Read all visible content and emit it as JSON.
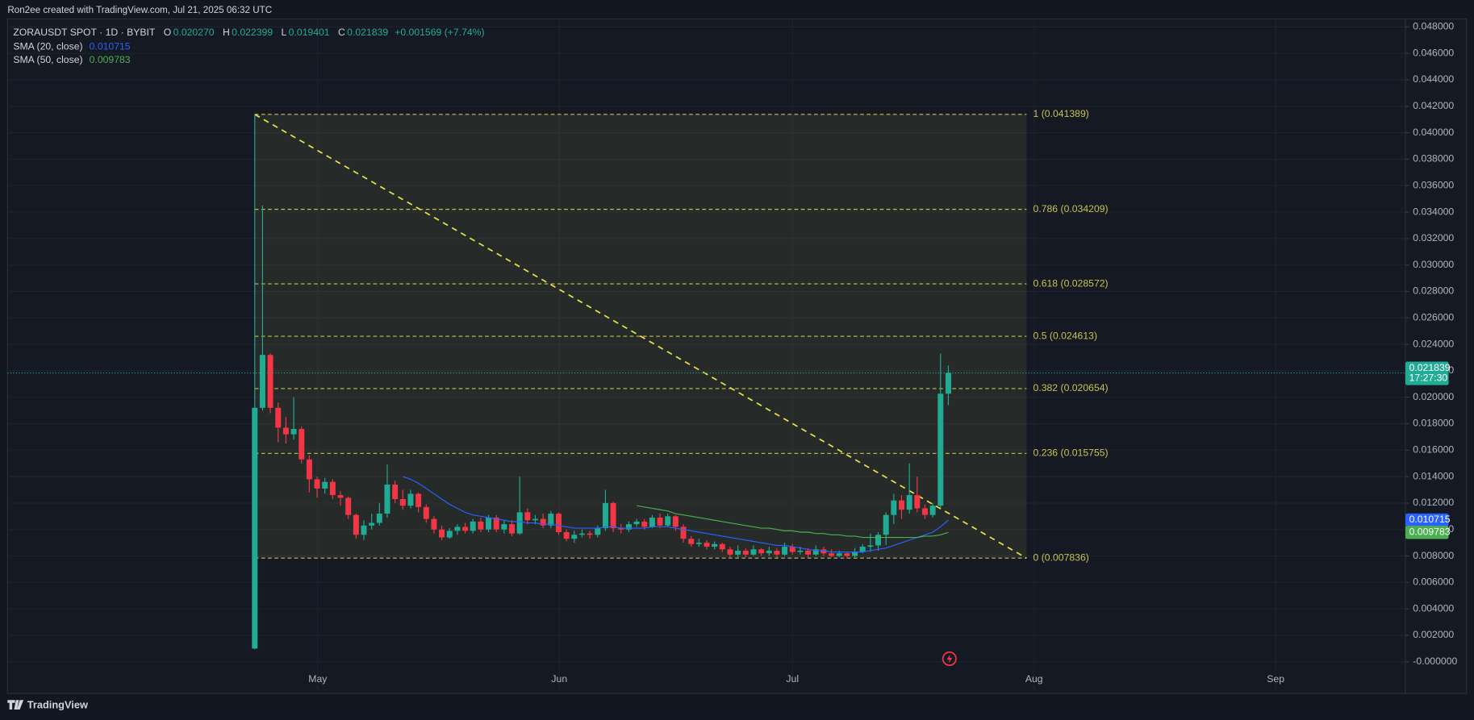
{
  "header": {
    "credit": "Ron2ee created with TradingView.com, Jul 21, 2025 06:32 UTC",
    "brand": "TradingView"
  },
  "chart_data": {
    "type": "candlestick",
    "symbol": "ZORAUSDT SPOT · 1D · BYBIT",
    "ohlc_legend": [
      {
        "key": "O",
        "value": "0.020270"
      },
      {
        "key": "H",
        "value": "0.022399"
      },
      {
        "key": "L",
        "value": "0.019401"
      },
      {
        "key": "C",
        "value": "0.021839"
      }
    ],
    "change": "+0.001569 (+7.74%)",
    "open": [
      0.001,
      0.0192,
      0.0232,
      0.0192,
      0.0177,
      0.0172,
      0.0176,
      0.0153,
      0.0138,
      0.0131,
      0.0136,
      0.0126,
      0.0124,
      0.0111,
      0.0096,
      0.0103,
      0.0105,
      0.0112,
      0.0134,
      0.0123,
      0.0118,
      0.0127,
      0.0117,
      0.0108,
      0.01,
      0.0094,
      0.0099,
      0.0102,
      0.0099,
      0.0106,
      0.01,
      0.0109,
      0.01,
      0.0104,
      0.0097,
      0.0113,
      0.0107,
      0.0108,
      0.0103,
      0.0112,
      0.0098,
      0.0093,
      0.0096,
      0.0097,
      0.0096,
      0.0101,
      0.012,
      0.0101,
      0.01,
      0.0104,
      0.0106,
      0.0102,
      0.0109,
      0.0103,
      0.011,
      0.0102,
      0.0093,
      0.0089,
      0.009,
      0.0087,
      0.0089,
      0.0085,
      0.0081,
      0.0084,
      0.0081,
      0.0085,
      0.0082,
      0.0084,
      0.0081,
      0.0087,
      0.0083,
      0.0084,
      0.0081,
      0.0085,
      0.0082,
      0.008,
      0.0082,
      0.008,
      0.0083,
      0.0087,
      0.0088,
      0.0096,
      0.0111,
      0.0122,
      0.0115,
      0.0126,
      0.0116,
      0.0111,
      0.0118,
      0.02027
    ],
    "high": [
      0.041389,
      0.0345,
      0.0233,
      0.0196,
      0.0185,
      0.02,
      0.0178,
      0.0156,
      0.014,
      0.0139,
      0.0138,
      0.0129,
      0.0125,
      0.0112,
      0.0107,
      0.0112,
      0.012,
      0.0149,
      0.0137,
      0.013,
      0.013,
      0.0128,
      0.0119,
      0.011,
      0.0103,
      0.0101,
      0.0104,
      0.0105,
      0.0108,
      0.0109,
      0.0111,
      0.0111,
      0.0107,
      0.0107,
      0.014,
      0.0116,
      0.0111,
      0.0112,
      0.0114,
      0.0113,
      0.01,
      0.0099,
      0.01,
      0.0099,
      0.0103,
      0.013,
      0.0121,
      0.0104,
      0.0106,
      0.0108,
      0.0108,
      0.0111,
      0.0112,
      0.0112,
      0.0111,
      0.0104,
      0.0095,
      0.0093,
      0.0092,
      0.0091,
      0.009,
      0.0087,
      0.0088,
      0.0086,
      0.0088,
      0.0086,
      0.0087,
      0.0086,
      0.009,
      0.0089,
      0.0087,
      0.0086,
      0.0088,
      0.0087,
      0.0085,
      0.0084,
      0.0083,
      0.0086,
      0.0089,
      0.0097,
      0.0098,
      0.0113,
      0.0127,
      0.0126,
      0.015,
      0.014,
      0.0119,
      0.012,
      0.0233,
      0.022399
    ],
    "low": [
      0.00094,
      0.019,
      0.0188,
      0.0166,
      0.0165,
      0.0168,
      0.015,
      0.0128,
      0.0124,
      0.0127,
      0.0123,
      0.0118,
      0.0108,
      0.0093,
      0.0092,
      0.01,
      0.0103,
      0.0109,
      0.012,
      0.0115,
      0.0116,
      0.0113,
      0.0105,
      0.0097,
      0.0092,
      0.0093,
      0.0096,
      0.0097,
      0.0097,
      0.0098,
      0.0098,
      0.0098,
      0.0097,
      0.0095,
      0.0096,
      0.0104,
      0.0104,
      0.0101,
      0.0101,
      0.0096,
      0.0091,
      0.009,
      0.0094,
      0.0093,
      0.0094,
      0.0099,
      0.0098,
      0.0097,
      0.0098,
      0.0102,
      0.01,
      0.0101,
      0.0101,
      0.0102,
      0.0099,
      0.009,
      0.0087,
      0.0087,
      0.0085,
      0.0085,
      0.0083,
      0.0079,
      0.0079,
      0.0079,
      0.008,
      0.008,
      0.008,
      0.0079,
      0.008,
      0.0081,
      0.0081,
      0.0079,
      0.008,
      0.008,
      0.0079,
      0.0079,
      0.0078,
      0.0079,
      0.0082,
      0.0083,
      0.0084,
      0.0088,
      0.0104,
      0.0108,
      0.0112,
      0.0113,
      0.0108,
      0.0109,
      0.0116,
      0.019401
    ],
    "close": [
      0.0192,
      0.0232,
      0.0192,
      0.0177,
      0.0172,
      0.0176,
      0.0153,
      0.0138,
      0.0131,
      0.0136,
      0.0126,
      0.0124,
      0.0111,
      0.0096,
      0.0103,
      0.0105,
      0.0112,
      0.0134,
      0.0123,
      0.0118,
      0.0127,
      0.0117,
      0.0108,
      0.01,
      0.0094,
      0.0099,
      0.0102,
      0.0099,
      0.0106,
      0.01,
      0.0109,
      0.01,
      0.0104,
      0.0097,
      0.0113,
      0.0107,
      0.0108,
      0.0103,
      0.0112,
      0.0098,
      0.0093,
      0.0096,
      0.0097,
      0.0096,
      0.0101,
      0.012,
      0.0101,
      0.01,
      0.0104,
      0.0106,
      0.0102,
      0.0109,
      0.0103,
      0.011,
      0.0102,
      0.0093,
      0.0089,
      0.009,
      0.0087,
      0.0089,
      0.0085,
      0.0081,
      0.0084,
      0.0081,
      0.0085,
      0.0082,
      0.0084,
      0.0081,
      0.0087,
      0.0083,
      0.0084,
      0.0081,
      0.0085,
      0.0082,
      0.008,
      0.0082,
      0.008,
      0.0083,
      0.0087,
      0.0088,
      0.0096,
      0.0111,
      0.0122,
      0.0115,
      0.0126,
      0.0116,
      0.0111,
      0.0118,
      0.02027,
      0.021839
    ],
    "up_color": "#22ab94",
    "down_color": "#f23645",
    "series": [
      {
        "name": "SMA (20, close)",
        "color": "#2962ff",
        "values": [
          null,
          null,
          null,
          null,
          null,
          null,
          null,
          null,
          null,
          null,
          null,
          null,
          null,
          null,
          null,
          null,
          null,
          null,
          null,
          0.014,
          0.0138,
          0.0135,
          0.0131,
          0.0127,
          0.0123,
          0.0119,
          0.0116,
          0.0113,
          0.0111,
          0.011,
          0.0109,
          0.0108,
          0.0107,
          0.0106,
          0.0106,
          0.0105,
          0.0105,
          0.0104,
          0.0104,
          0.0103,
          0.0102,
          0.0101,
          0.0101,
          0.0101,
          0.0101,
          0.0102,
          0.0102,
          0.0101,
          0.0101,
          0.0101,
          0.0101,
          0.0102,
          0.0102,
          0.0102,
          0.0101,
          0.01,
          0.0099,
          0.0098,
          0.0097,
          0.0096,
          0.0095,
          0.0094,
          0.0093,
          0.0092,
          0.0091,
          0.009,
          0.0089,
          0.0088,
          0.0088,
          0.0087,
          0.0086,
          0.0085,
          0.0084,
          0.0084,
          0.0083,
          0.0083,
          0.0083,
          0.0083,
          0.0083,
          0.0084,
          0.0085,
          0.0086,
          0.0088,
          0.009,
          0.0092,
          0.0094,
          0.0096,
          0.0098,
          0.0102,
          0.010715
        ]
      },
      {
        "name": "SMA (50, close)",
        "color": "#4caf50",
        "values": [
          null,
          null,
          null,
          null,
          null,
          null,
          null,
          null,
          null,
          null,
          null,
          null,
          null,
          null,
          null,
          null,
          null,
          null,
          null,
          null,
          null,
          null,
          null,
          null,
          null,
          null,
          null,
          null,
          null,
          null,
          null,
          null,
          null,
          null,
          null,
          null,
          null,
          null,
          null,
          null,
          null,
          null,
          null,
          null,
          null,
          null,
          null,
          null,
          null,
          0.0118,
          0.0117,
          0.0116,
          0.0115,
          0.0114,
          0.0112,
          0.0111,
          0.011,
          0.0109,
          0.0108,
          0.0107,
          0.0106,
          0.0105,
          0.0104,
          0.0103,
          0.0102,
          0.0101,
          0.0101,
          0.01,
          0.0099,
          0.0099,
          0.0098,
          0.0098,
          0.0097,
          0.0097,
          0.0096,
          0.0096,
          0.0095,
          0.0095,
          0.0094,
          0.0094,
          0.0094,
          0.0094,
          0.0094,
          0.0094,
          0.0094,
          0.0094,
          0.0095,
          0.0095,
          0.0096,
          0.009783
        ]
      }
    ],
    "x_labels": [
      "May",
      "Jun",
      "Jul",
      "Aug",
      "Sep"
    ],
    "ylim": [
      -0.0024,
      0.0486
    ],
    "yticks": [
      {
        "value": 0.048,
        "label": "0.048000"
      },
      {
        "value": 0.046,
        "label": "0.046000"
      },
      {
        "value": 0.044,
        "label": "0.044000"
      },
      {
        "value": 0.042,
        "label": "0.042000"
      },
      {
        "value": 0.04,
        "label": "0.040000"
      },
      {
        "value": 0.038,
        "label": "0.038000"
      },
      {
        "value": 0.036,
        "label": "0.036000"
      },
      {
        "value": 0.034,
        "label": "0.034000"
      },
      {
        "value": 0.032,
        "label": "0.032000"
      },
      {
        "value": 0.03,
        "label": "0.030000"
      },
      {
        "value": 0.028,
        "label": "0.028000"
      },
      {
        "value": 0.026,
        "label": "0.026000"
      },
      {
        "value": 0.024,
        "label": "0.024000"
      },
      {
        "value": 0.022,
        "label": "0.022000"
      },
      {
        "value": 0.02,
        "label": "0.020000"
      },
      {
        "value": 0.018,
        "label": "0.018000"
      },
      {
        "value": 0.016,
        "label": "0.016000"
      },
      {
        "value": 0.014,
        "label": "0.014000"
      },
      {
        "value": 0.012,
        "label": "0.012000"
      },
      {
        "value": 0.01,
        "label": "0.010000"
      },
      {
        "value": 0.008,
        "label": "0.008000"
      },
      {
        "value": 0.006,
        "label": "0.006000"
      },
      {
        "value": 0.004,
        "label": "0.004000"
      },
      {
        "value": 0.002,
        "label": "0.002000"
      },
      {
        "value": 0,
        "label": "-0.000000"
      }
    ],
    "grid": true,
    "fib_levels": [
      {
        "value": 0.041389,
        "label": "1 (0.041389)"
      },
      {
        "value": 0.034209,
        "label": "0.786 (0.034209)"
      },
      {
        "value": 0.028572,
        "label": "0.618 (0.028572)"
      },
      {
        "value": 0.024613,
        "label": "0.5 (0.024613)"
      },
      {
        "value": 0.020654,
        "label": "0.382 (0.020654)"
      },
      {
        "value": 0.015755,
        "label": "0.236 (0.015755)"
      },
      {
        "value": 0.007836,
        "label": "0 (0.007836)"
      }
    ],
    "fib_color": "#c9c24f",
    "last_price_countdown": "17:27:30"
  }
}
